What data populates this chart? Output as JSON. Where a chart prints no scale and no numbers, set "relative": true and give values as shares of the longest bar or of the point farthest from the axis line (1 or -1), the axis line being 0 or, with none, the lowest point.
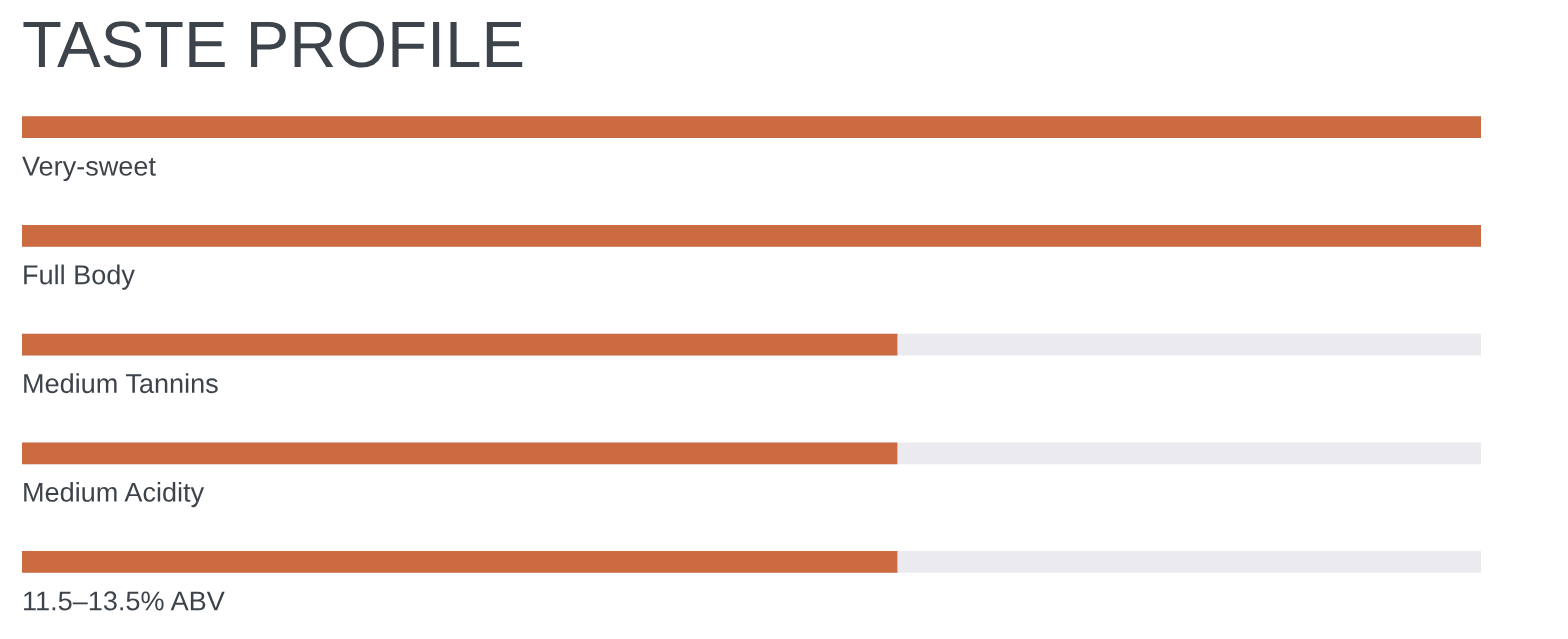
{
  "chart_data": {
    "type": "bar",
    "orientation": "horizontal",
    "relative": true,
    "title": "TASTE PROFILE",
    "categories": [
      "Very-sweet",
      "Full Body",
      "Medium Tannins",
      "Medium Acidity",
      "11.5–13.5% ABV"
    ],
    "values": [
      1,
      1,
      0.6,
      0.6,
      0.6
    ],
    "color": "#cc6a42"
  }
}
